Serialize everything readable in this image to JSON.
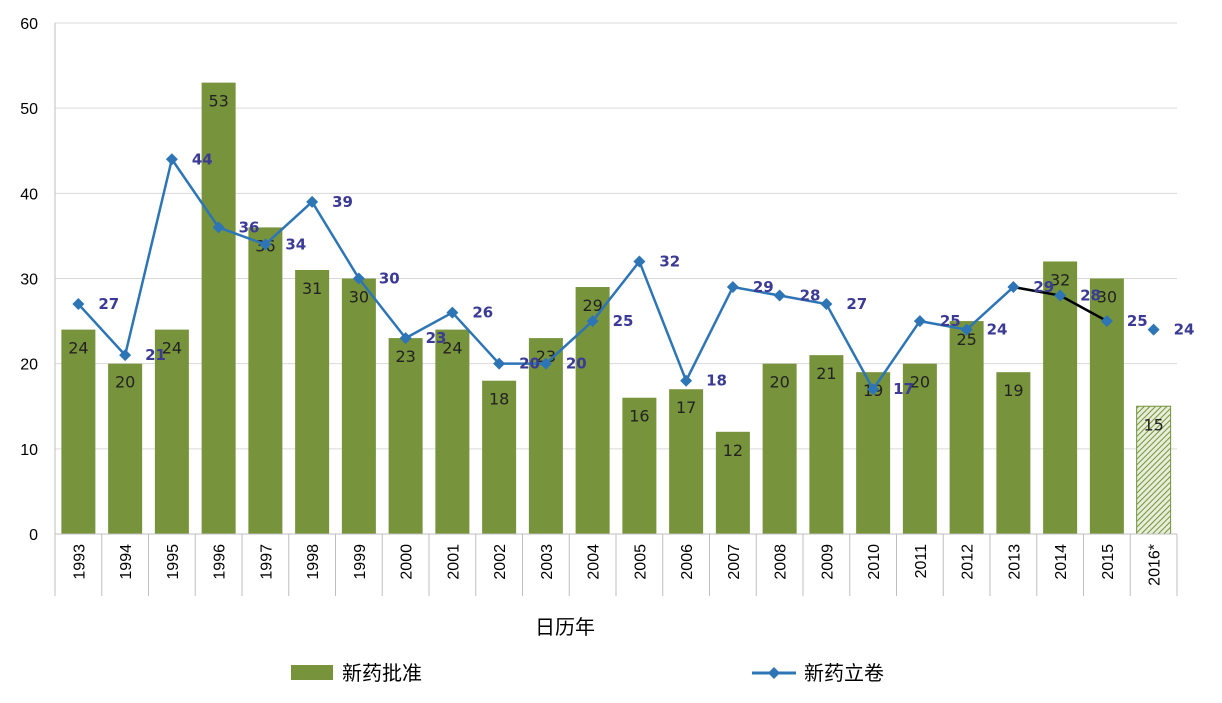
{
  "chart_data": {
    "type": "bar",
    "categories": [
      "1993",
      "1994",
      "1995",
      "1996",
      "1997",
      "1998",
      "1999",
      "2000",
      "2001",
      "2002",
      "2003",
      "2004",
      "2005",
      "2006",
      "2007",
      "2008",
      "2009",
      "2010",
      "2011",
      "2012",
      "2013",
      "2014",
      "2015",
      "2016*"
    ],
    "xlabel": "日历年",
    "ylabel": "",
    "ylim": [
      0,
      60
    ],
    "yticks": [
      0,
      10,
      20,
      30,
      40,
      50,
      60
    ],
    "grid": true,
    "legend_position": "bottom",
    "series": [
      {
        "name": "新药批准",
        "type": "bar",
        "color": "#77933c",
        "values": [
          24,
          20,
          24,
          53,
          36,
          31,
          30,
          23,
          24,
          18,
          23,
          29,
          16,
          17,
          12,
          20,
          21,
          19,
          20,
          25,
          19,
          32,
          30,
          15
        ],
        "projected_categories": [
          "2016*"
        ]
      },
      {
        "name": "新药立卷",
        "type": "line",
        "color": "#2e75b6",
        "marker": "diamond",
        "values": [
          27,
          21,
          44,
          36,
          34,
          39,
          30,
          23,
          26,
          20,
          20,
          25,
          32,
          18,
          29,
          28,
          27,
          17,
          25,
          24,
          29,
          28,
          25,
          24
        ]
      }
    ],
    "trend_segment": {
      "color": "#000000",
      "from": "2013",
      "to": "2015",
      "values": [
        29,
        28,
        25
      ]
    }
  }
}
